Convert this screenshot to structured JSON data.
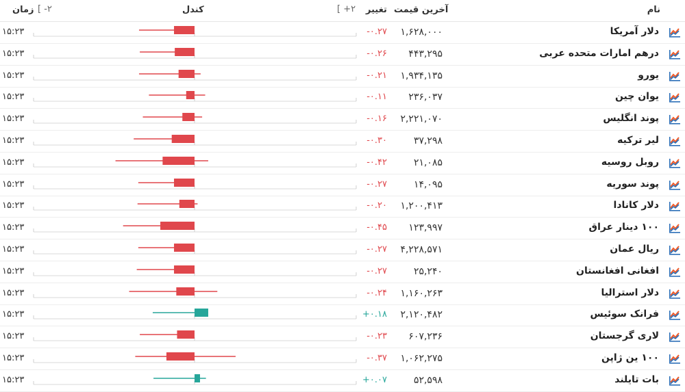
{
  "header": {
    "name": "نام",
    "price": "آخرین قیمت",
    "change": "تغییر",
    "candle": "کندل",
    "plus_range": "[ +۲",
    "minus_range": "[ -۲",
    "time": "زمان"
  },
  "colors": {
    "negative": "#e0474c",
    "positive": "#26a69a",
    "icon": "#f05a28"
  },
  "icon_name": "line-chart-icon",
  "rows": [
    {
      "name": "دلار آمریکا",
      "price": "۱,۶۲۸,۰۰۰",
      "change": "-۰.۲۷",
      "change_value": -0.27,
      "time": "۱۵:۲۳"
    },
    {
      "name": "درهم امارات متحده عربی",
      "price": "۴۴۳,۲۹۵",
      "change": "-۰.۲۶",
      "change_value": -0.26,
      "time": "۱۵:۲۳"
    },
    {
      "name": "یورو",
      "price": "۱,۹۳۴,۱۳۵",
      "change": "-۰.۲۱",
      "change_value": -0.21,
      "time": "۱۵:۲۳"
    },
    {
      "name": "یوان چین",
      "price": "۲۳۶,۰۳۷",
      "change": "-۰.۱۱",
      "change_value": -0.11,
      "time": "۱۵:۲۳"
    },
    {
      "name": "پوند انگلیس",
      "price": "۲,۲۲۱,۰۷۰",
      "change": "-۰.۱۶",
      "change_value": -0.16,
      "time": "۱۵:۲۳"
    },
    {
      "name": "لیر ترکیه",
      "price": "۳۷,۲۹۸",
      "change": "-۰.۳۰",
      "change_value": -0.3,
      "time": "۱۵:۲۳"
    },
    {
      "name": "روبل روسیه",
      "price": "۲۱,۰۸۵",
      "change": "-۰.۴۲",
      "change_value": -0.42,
      "time": "۱۵:۲۳"
    },
    {
      "name": "پوند سوریه",
      "price": "۱۴,۰۹۵",
      "change": "-۰.۲۷",
      "change_value": -0.27,
      "time": "۱۵:۲۳"
    },
    {
      "name": "دلار کانادا",
      "price": "۱,۲۰۰,۴۱۳",
      "change": "-۰.۲۰",
      "change_value": -0.2,
      "time": "۱۵:۲۳"
    },
    {
      "name": "۱۰۰ دینار عراق",
      "price": "۱۲۳,۹۹۷",
      "change": "-۰.۴۵",
      "change_value": -0.45,
      "time": "۱۵:۲۳"
    },
    {
      "name": "ریال عمان",
      "price": "۴,۲۲۸,۵۷۱",
      "change": "-۰.۲۷",
      "change_value": -0.27,
      "time": "۱۵:۲۳"
    },
    {
      "name": "افغانی افغانستان",
      "price": "۲۵,۲۴۰",
      "change": "-۰.۲۷",
      "change_value": -0.27,
      "time": "۱۵:۲۳"
    },
    {
      "name": "دلار استرالیا",
      "price": "۱,۱۶۰,۲۶۳",
      "change": "-۰.۲۴",
      "change_value": -0.24,
      "time": "۱۵:۲۳"
    },
    {
      "name": "فرانک سوئیس",
      "price": "۲,۱۲۰,۴۸۲",
      "change": "+۰.۱۸",
      "change_value": 0.18,
      "time": "۱۵:۲۳"
    },
    {
      "name": "لاری گرجستان",
      "price": "۶۰۷,۲۳۶",
      "change": "-۰.۲۳",
      "change_value": -0.23,
      "time": "۱۵:۲۳"
    },
    {
      "name": "۱۰۰ ین ژاپن",
      "price": "۱,۰۶۲,۲۷۵",
      "change": "-۰.۳۷",
      "change_value": -0.37,
      "time": "۱۵:۲۳"
    },
    {
      "name": "بات تایلند",
      "price": "۵۲,۵۹۸",
      "change": "+۰.۰۷",
      "change_value": 0.07,
      "time": "۱۵:۲۳"
    }
  ],
  "chart_data": {
    "type": "candlestick",
    "range_percent": [
      -2,
      2
    ],
    "series": [
      {
        "open": 0,
        "close": -0.27,
        "high": 0,
        "low": -0.73
      },
      {
        "open": 0,
        "close": -0.26,
        "high": 0,
        "low": -0.72
      },
      {
        "open": 0,
        "close": -0.21,
        "high": 0.08,
        "low": -0.73
      },
      {
        "open": 0,
        "close": -0.11,
        "high": 0.14,
        "low": -0.6
      },
      {
        "open": 0,
        "close": -0.16,
        "high": 0.1,
        "low": -0.68
      },
      {
        "open": 0,
        "close": -0.3,
        "high": 0,
        "low": -0.8
      },
      {
        "open": 0,
        "close": -0.42,
        "high": 0.18,
        "low": -1.04
      },
      {
        "open": 0,
        "close": -0.27,
        "high": 0,
        "low": -0.74
      },
      {
        "open": 0,
        "close": -0.2,
        "high": 0.04,
        "low": -0.75
      },
      {
        "open": 0,
        "close": -0.45,
        "high": 0,
        "low": -0.94
      },
      {
        "open": 0,
        "close": -0.27,
        "high": 0,
        "low": -0.74
      },
      {
        "open": 0,
        "close": -0.27,
        "high": 0,
        "low": -0.76
      },
      {
        "open": 0,
        "close": -0.24,
        "high": 0.3,
        "low": -0.86
      },
      {
        "open": 0,
        "close": 0.18,
        "high": 0.18,
        "low": -0.55
      },
      {
        "open": 0,
        "close": -0.23,
        "high": 0,
        "low": -0.72
      },
      {
        "open": 0,
        "close": -0.37,
        "high": 0.54,
        "low": -0.78
      },
      {
        "open": 0,
        "close": 0.07,
        "high": 0.15,
        "low": -0.54
      }
    ]
  }
}
